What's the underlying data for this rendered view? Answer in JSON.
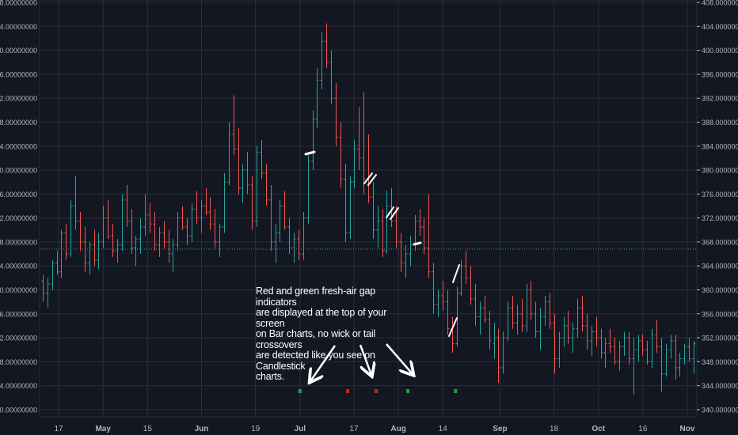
{
  "chart_data": {
    "type": "ohlc",
    "title": "",
    "xlabel": "",
    "ylabel": "",
    "ylim": [
      338.8,
      408.4
    ],
    "y_ticks": [
      "340.00000000",
      "344.00000000",
      "348.00000000",
      "352.00000000",
      "356.00000000",
      "360.00000000",
      "364.00000000",
      "368.00000000",
      "372.00000000",
      "376.00000000",
      "380.00000000",
      "384.00000000",
      "388.00000000",
      "392.00000000",
      "396.00000000",
      "400.00000000",
      "404.00000000",
      "408.00000000"
    ],
    "x_ticks": [
      "17",
      "May",
      "15",
      "Jun",
      "19",
      "Jul",
      "17",
      "Aug",
      "14",
      "Sep",
      "18",
      "Oct",
      "16",
      "Nov"
    ],
    "x_tick_days": [
      0,
      14,
      28,
      45,
      62,
      76,
      93,
      107,
      121,
      139,
      156,
      170,
      184,
      198
    ],
    "date_range_days": [
      -6,
      201
    ],
    "reference_line": 366.8,
    "grid": true,
    "series": [
      {
        "name": "",
        "description": "daily price bars",
        "values": [
          [
            361.5,
            362.5,
            358.0,
            359.5
          ],
          [
            359.5,
            362.0,
            357.0,
            361.0
          ],
          [
            361.0,
            365.0,
            360.0,
            364.5
          ],
          [
            364.5,
            366.5,
            362.5,
            363.0
          ],
          [
            363.0,
            370.0,
            362.0,
            369.5
          ],
          [
            369.5,
            371.0,
            365.0,
            366.0
          ],
          [
            366.0,
            375.0,
            365.5,
            374.0
          ],
          [
            374.0,
            379.0,
            370.0,
            371.5
          ],
          [
            371.5,
            373.0,
            366.5,
            368.0
          ],
          [
            368.0,
            370.5,
            363.0,
            364.5
          ],
          [
            364.5,
            368.0,
            362.5,
            367.5
          ],
          [
            367.5,
            370.0,
            364.0,
            365.0
          ],
          [
            365.0,
            369.5,
            363.5,
            368.0
          ],
          [
            368.0,
            374.0,
            367.0,
            372.0
          ],
          [
            372.0,
            375.0,
            368.5,
            369.0
          ],
          [
            369.0,
            371.0,
            365.5,
            366.5
          ],
          [
            366.5,
            368.5,
            364.5,
            367.5
          ],
          [
            367.5,
            376.0,
            366.5,
            375.0
          ],
          [
            375.0,
            377.5,
            370.5,
            371.5
          ],
          [
            371.5,
            373.5,
            366.0,
            367.0
          ],
          [
            367.0,
            369.0,
            364.0,
            368.5
          ],
          [
            368.5,
            372.0,
            366.0,
            370.5
          ],
          [
            370.5,
            376.0,
            369.0,
            372.5
          ],
          [
            372.5,
            374.5,
            369.5,
            371.0
          ],
          [
            371.0,
            373.0,
            366.5,
            367.5
          ],
          [
            367.5,
            370.5,
            365.5,
            369.5
          ],
          [
            369.5,
            371.5,
            367.0,
            368.0
          ],
          [
            368.0,
            370.0,
            364.5,
            366.0
          ],
          [
            366.0,
            368.5,
            363.0,
            367.5
          ],
          [
            367.5,
            373.0,
            366.5,
            372.0
          ],
          [
            372.0,
            374.0,
            370.0,
            370.5
          ],
          [
            370.5,
            372.0,
            367.5,
            369.0
          ],
          [
            369.0,
            374.5,
            368.0,
            373.5
          ],
          [
            373.5,
            376.5,
            371.0,
            372.0
          ],
          [
            372.0,
            375.0,
            369.5,
            374.0
          ],
          [
            374.0,
            377.0,
            372.5,
            373.0
          ],
          [
            373.0,
            375.5,
            370.0,
            371.0
          ],
          [
            371.0,
            373.5,
            367.0,
            368.0
          ],
          [
            368.0,
            371.0,
            365.5,
            370.5
          ],
          [
            370.5,
            379.5,
            369.5,
            378.0
          ],
          [
            378.0,
            388.0,
            377.5,
            386.0
          ],
          [
            386.0,
            392.5,
            382.5,
            383.5
          ],
          [
            383.5,
            387.0,
            376.0,
            377.0
          ],
          [
            377.0,
            381.0,
            374.5,
            380.0
          ],
          [
            380.0,
            383.0,
            376.0,
            377.5
          ],
          [
            377.5,
            379.0,
            370.0,
            371.5
          ],
          [
            371.5,
            384.0,
            370.5,
            383.0
          ],
          [
            383.0,
            385.0,
            378.5,
            379.5
          ],
          [
            379.5,
            381.0,
            374.0,
            375.0
          ],
          [
            375.0,
            377.5,
            366.5,
            368.0
          ],
          [
            368.0,
            371.0,
            364.5,
            369.5
          ],
          [
            369.5,
            375.0,
            368.0,
            374.0
          ],
          [
            374.0,
            376.5,
            370.0,
            370.5
          ],
          [
            370.5,
            372.0,
            366.0,
            367.0
          ],
          [
            367.0,
            369.5,
            364.5,
            368.5
          ],
          [
            368.5,
            370.0,
            365.0,
            366.0
          ],
          [
            366.0,
            373.0,
            365.0,
            372.0
          ],
          [
            372.0,
            382.5,
            371.0,
            381.5
          ],
          [
            381.5,
            390.0,
            380.0,
            388.5
          ],
          [
            388.5,
            397.0,
            387.0,
            395.0
          ],
          [
            395.0,
            403.0,
            393.5,
            401.5
          ],
          [
            401.5,
            404.5,
            397.0,
            398.0
          ],
          [
            398.0,
            400.0,
            391.0,
            392.0
          ],
          [
            392.0,
            394.5,
            384.0,
            385.5
          ],
          [
            385.5,
            388.0,
            377.0,
            378.5
          ],
          [
            378.5,
            381.0,
            368.0,
            369.5
          ],
          [
            369.5,
            379.0,
            368.5,
            378.0
          ],
          [
            378.0,
            385.0,
            377.0,
            383.5
          ],
          [
            383.5,
            390.5,
            380.0,
            382.0
          ],
          [
            382.0,
            393.0,
            376.0,
            378.5
          ],
          [
            378.5,
            386.0,
            374.5,
            375.5
          ],
          [
            375.5,
            378.0,
            368.5,
            370.0
          ],
          [
            370.0,
            374.0,
            367.0,
            371.5
          ],
          [
            371.5,
            373.5,
            365.5,
            366.5
          ],
          [
            366.5,
            376.5,
            366.0,
            374.0
          ],
          [
            374.0,
            377.0,
            370.5,
            371.5
          ],
          [
            371.5,
            374.0,
            367.0,
            368.0
          ],
          [
            368.0,
            369.5,
            363.0,
            364.5
          ],
          [
            364.5,
            367.5,
            362.0,
            366.0
          ],
          [
            366.0,
            369.0,
            364.0,
            367.5
          ],
          [
            367.5,
            372.5,
            366.5,
            371.5
          ],
          [
            371.5,
            373.5,
            369.0,
            370.5
          ],
          [
            370.5,
            372.0,
            366.0,
            367.0
          ],
          [
            367.0,
            376.0,
            362.0,
            363.0
          ],
          [
            363.0,
            364.5,
            356.0,
            357.5
          ],
          [
            357.5,
            360.0,
            355.5,
            359.0
          ],
          [
            359.0,
            361.5,
            356.5,
            358.0
          ],
          [
            358.0,
            360.0,
            352.5,
            353.5
          ],
          [
            353.5,
            355.5,
            349.5,
            351.0
          ],
          [
            351.0,
            360.5,
            350.5,
            359.5
          ],
          [
            359.5,
            365.0,
            359.0,
            364.0
          ],
          [
            364.0,
            366.5,
            361.0,
            362.0
          ],
          [
            362.0,
            364.0,
            357.5,
            358.5
          ],
          [
            358.5,
            361.0,
            354.0,
            355.5
          ],
          [
            355.5,
            358.0,
            352.5,
            357.0
          ],
          [
            357.0,
            359.0,
            354.5,
            355.0
          ],
          [
            355.0,
            356.5,
            350.0,
            351.5
          ],
          [
            351.0,
            354.5,
            348.5,
            352.0
          ],
          [
            352.0,
            353.5,
            344.5,
            347.0
          ],
          [
            347.0,
            353.0,
            346.0,
            352.0
          ],
          [
            352.0,
            358.0,
            351.5,
            357.0
          ],
          [
            357.0,
            359.0,
            353.5,
            354.5
          ],
          [
            354.5,
            357.5,
            352.5,
            356.0
          ],
          [
            356.0,
            358.5,
            353.0,
            354.0
          ],
          [
            354.0,
            361.0,
            353.0,
            360.0
          ],
          [
            360.0,
            361.5,
            355.0,
            356.0
          ],
          [
            356.0,
            358.0,
            352.0,
            353.0
          ],
          [
            353.0,
            357.0,
            350.0,
            355.5
          ],
          [
            355.5,
            359.0,
            354.0,
            358.0
          ],
          [
            358.0,
            359.5,
            353.5,
            354.5
          ],
          [
            354.5,
            356.0,
            346.0,
            348.5
          ],
          [
            348.5,
            353.0,
            347.0,
            352.0
          ],
          [
            352.0,
            355.5,
            350.5,
            354.0
          ],
          [
            354.0,
            356.5,
            351.0,
            352.0
          ],
          [
            352.0,
            354.5,
            349.5,
            353.5
          ],
          [
            353.5,
            358.5,
            352.0,
            357.0
          ],
          [
            357.0,
            359.0,
            353.0,
            354.0
          ],
          [
            354.0,
            356.0,
            350.0,
            351.5
          ],
          [
            351.5,
            354.0,
            349.0,
            353.0
          ],
          [
            353.0,
            355.5,
            350.5,
            352.0
          ],
          [
            352.0,
            353.5,
            348.5,
            349.5
          ],
          [
            349.5,
            352.0,
            347.0,
            351.0
          ],
          [
            351.0,
            353.5,
            349.5,
            350.5
          ],
          [
            350.5,
            352.0,
            347.5,
            348.0
          ],
          [
            348.0,
            351.5,
            346.5,
            350.5
          ],
          [
            350.5,
            353.0,
            349.0,
            352.0
          ],
          [
            352.0,
            353.0,
            347.5,
            348.5
          ],
          [
            348.5,
            352.0,
            342.5,
            350.0
          ],
          [
            350.0,
            352.5,
            348.0,
            351.5
          ],
          [
            351.5,
            352.5,
            349.0,
            350.0
          ],
          [
            350.0,
            351.5,
            347.5,
            348.0
          ],
          [
            348.0,
            353.5,
            347.0,
            352.5
          ],
          [
            352.5,
            355.0,
            349.5,
            350.5
          ],
          [
            350.5,
            352.0,
            343.0,
            346.0
          ],
          [
            346.0,
            351.0,
            345.5,
            350.0
          ],
          [
            350.0,
            352.5,
            348.5,
            351.5
          ],
          [
            351.5,
            352.5,
            345.0,
            347.0
          ],
          [
            347.0,
            349.5,
            345.5,
            348.5
          ],
          [
            348.5,
            351.0,
            347.5,
            350.5
          ],
          [
            350.5,
            352.0,
            348.0,
            348.5
          ],
          [
            348.5,
            351.5,
            346.0,
            351.0
          ]
        ]
      }
    ],
    "gap_markers": [
      {
        "day": 76,
        "color": "#1f9e4a"
      },
      {
        "day": 91,
        "color": "#d11f1f"
      },
      {
        "day": 100,
        "color": "#d11f1f"
      },
      {
        "day": 110,
        "color": "#1f9e4a"
      },
      {
        "day": 125,
        "color": "#1f9e4a"
      }
    ],
    "colors": {
      "background": "#131722",
      "grid": "#2a2e39",
      "up": "#26a69a",
      "down": "#ef5350",
      "text": "#b2b5be",
      "reference": "#26a69a"
    }
  },
  "annotation": {
    "lines": [
      "Red and green fresh-air gap indicators",
      "are displayed at the top of your screen",
      "on Bar charts, no wick or tail crossovers",
      "are detected like you see on Candlestick",
      "charts."
    ]
  }
}
